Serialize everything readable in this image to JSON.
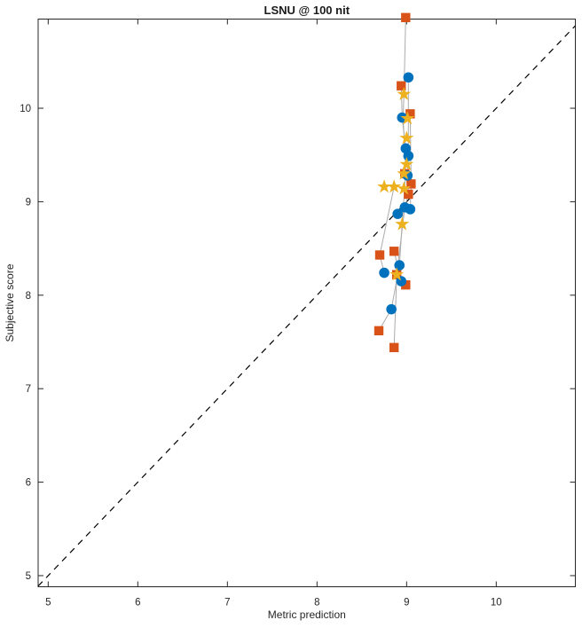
{
  "title": "LSNU @ 100 nit",
  "chart_data": {
    "type": "scatter",
    "title": "LSNU @ 100 nit",
    "xlabel": "Metric prediction",
    "ylabel": "Subjective score",
    "xlim": [
      4.888,
      10.883
    ],
    "ylim": [
      4.881,
      10.954
    ],
    "xticks": [
      5,
      6,
      7,
      8,
      9,
      10
    ],
    "yticks": [
      5,
      6,
      7,
      8,
      9,
      10
    ],
    "grid": false,
    "legend": "none",
    "identity_line": {
      "style": "dashed",
      "color": "#000000",
      "x1": 4.888,
      "y1": 4.888,
      "x2": 10.883,
      "y2": 10.883
    },
    "connector_lines": {
      "color": "#ababab",
      "paths": [
        [
          [
            8.99,
            10.97
          ],
          [
            8.97,
            10.15
          ],
          [
            8.96,
            9.89
          ],
          [
            8.98,
            9.57
          ],
          [
            8.99,
            9.31
          ],
          [
            8.95,
            8.76
          ],
          [
            8.92,
            8.32
          ],
          [
            8.83,
            7.85
          ],
          [
            8.69,
            7.62
          ]
        ],
        [
          [
            9.02,
            10.33
          ],
          [
            9.02,
            9.49
          ],
          [
            9.01,
            9.28
          ],
          [
            9.02,
            9.08
          ],
          [
            8.98,
            8.94
          ],
          [
            8.89,
            8.22
          ],
          [
            8.86,
            7.44
          ]
        ],
        [
          [
            8.94,
            10.24
          ],
          [
            8.95,
            9.9
          ],
          [
            8.99,
            9.57
          ]
        ],
        [
          [
            8.86,
            9.16
          ],
          [
            8.7,
            8.43
          ],
          [
            8.75,
            8.24
          ]
        ],
        [
          [
            8.86,
            8.47
          ],
          [
            8.94,
            8.15
          ],
          [
            8.99,
            8.11
          ]
        ],
        [
          [
            9.04,
            9.94
          ],
          [
            9.05,
            9.19
          ],
          [
            9.04,
            8.92
          ]
        ]
      ]
    },
    "series": [
      {
        "name": "squares",
        "marker": "square",
        "color": "#D95319",
        "points": [
          [
            8.99,
            10.97
          ],
          [
            8.94,
            10.24
          ],
          [
            9.04,
            9.94
          ],
          [
            8.98,
            9.3
          ],
          [
            9.05,
            9.19
          ],
          [
            9.02,
            9.08
          ],
          [
            8.86,
            8.47
          ],
          [
            8.7,
            8.43
          ],
          [
            8.89,
            8.22
          ],
          [
            8.99,
            8.11
          ],
          [
            8.69,
            7.62
          ],
          [
            8.86,
            7.44
          ]
        ]
      },
      {
        "name": "circles",
        "marker": "circle",
        "color": "#0072BD",
        "points": [
          [
            9.02,
            10.33
          ],
          [
            8.95,
            9.9
          ],
          [
            8.99,
            9.57
          ],
          [
            9.02,
            9.49
          ],
          [
            9.01,
            9.28
          ],
          [
            8.98,
            8.94
          ],
          [
            9.04,
            8.92
          ],
          [
            8.9,
            8.87
          ],
          [
            8.92,
            8.32
          ],
          [
            8.75,
            8.24
          ],
          [
            8.94,
            8.15
          ],
          [
            8.83,
            7.85
          ]
        ]
      },
      {
        "name": "stars",
        "marker": "star",
        "color": "#EDB120",
        "points": [
          [
            8.97,
            10.15
          ],
          [
            9.01,
            9.89
          ],
          [
            9.0,
            9.68
          ],
          [
            9.0,
            9.4
          ],
          [
            8.97,
            9.3
          ],
          [
            8.75,
            9.16
          ],
          [
            8.86,
            9.16
          ],
          [
            8.97,
            9.14
          ],
          [
            8.95,
            8.76
          ],
          [
            8.89,
            8.22
          ]
        ]
      }
    ],
    "axis_color": "#262626"
  }
}
